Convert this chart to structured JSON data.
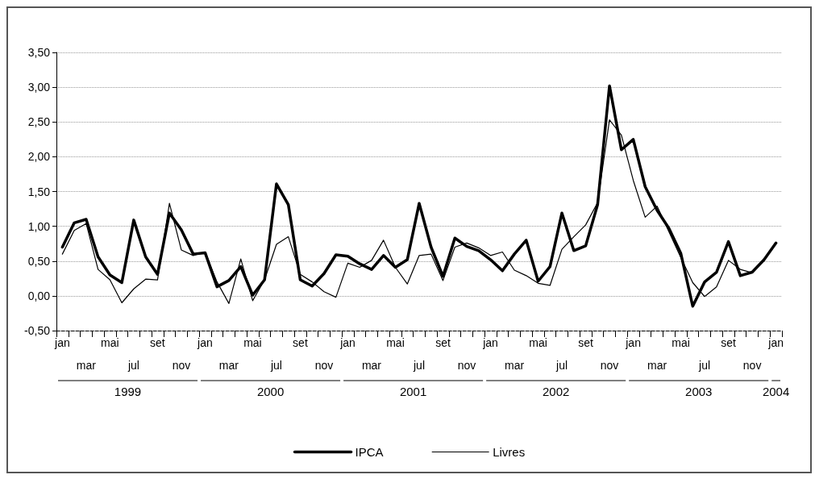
{
  "chart_data": {
    "type": "line",
    "categories": [
      "jan",
      null,
      "mar",
      null,
      "mai",
      null,
      "jul",
      null,
      "set",
      null,
      "nov",
      null,
      "jan",
      null,
      "mar",
      null,
      "mai",
      null,
      "jul",
      null,
      "set",
      null,
      "nov",
      null,
      "jan",
      null,
      "mar",
      null,
      "mai",
      null,
      "jul",
      null,
      "set",
      null,
      "nov",
      null,
      "jan",
      null,
      "mar",
      null,
      "mai",
      null,
      "jul",
      null,
      "set",
      null,
      "nov",
      null,
      "jan",
      null,
      "mar",
      null,
      "mai",
      null,
      "jul",
      null,
      "set",
      null,
      "nov",
      null,
      "jan"
    ],
    "series": [
      {
        "name": "IPCA",
        "color": "#000000",
        "values": [
          0.7,
          1.05,
          1.1,
          0.56,
          0.3,
          0.19,
          1.09,
          0.56,
          0.31,
          1.19,
          0.95,
          0.6,
          0.62,
          0.13,
          0.22,
          0.42,
          0.01,
          0.23,
          1.61,
          1.31,
          0.23,
          0.14,
          0.32,
          0.59,
          0.57,
          0.46,
          0.38,
          0.58,
          0.41,
          0.52,
          1.33,
          0.7,
          0.28,
          0.83,
          0.71,
          0.65,
          0.52,
          0.36,
          0.6,
          0.8,
          0.21,
          0.42,
          1.19,
          0.65,
          0.72,
          1.31,
          3.02,
          2.1,
          2.25,
          1.57,
          1.23,
          0.97,
          0.61,
          -0.15,
          0.2,
          0.34,
          0.78,
          0.29,
          0.34,
          0.52,
          0.76
        ]
      },
      {
        "name": "Livres",
        "color": "#000000",
        "values": [
          0.6,
          0.94,
          1.04,
          0.38,
          0.23,
          -0.1,
          0.1,
          0.24,
          0.23,
          1.33,
          0.66,
          0.58,
          0.63,
          0.2,
          -0.11,
          0.53,
          -0.07,
          0.23,
          0.74,
          0.85,
          0.31,
          0.2,
          0.06,
          -0.02,
          0.47,
          0.41,
          0.51,
          0.8,
          0.41,
          0.17,
          0.58,
          0.6,
          0.22,
          0.7,
          0.76,
          0.69,
          0.58,
          0.63,
          0.37,
          0.29,
          0.18,
          0.15,
          0.67,
          0.85,
          1.02,
          1.34,
          2.53,
          2.31,
          1.66,
          1.13,
          1.29,
          0.92,
          0.55,
          0.19,
          -0.01,
          0.13,
          0.51,
          0.38,
          0.33,
          0.51,
          0.75
        ]
      }
    ],
    "ylim": [
      -0.5,
      3.5
    ],
    "yticks": [
      {
        "value": -0.5,
        "label": "-0,50"
      },
      {
        "value": 0,
        "label": "0,00"
      },
      {
        "value": 0.5,
        "label": "0,50"
      },
      {
        "value": 1,
        "label": "1,00"
      },
      {
        "value": 1.5,
        "label": "1,50"
      },
      {
        "value": 2,
        "label": "2,00"
      },
      {
        "value": 2.5,
        "label": "2,50"
      },
      {
        "value": 3,
        "label": "3,00"
      },
      {
        "value": 3.5,
        "label": "3,50"
      }
    ],
    "grid": "y",
    "legend": "bottom",
    "marker": "none",
    "line_style": "solid",
    "annotations": [
      "1999",
      "2000",
      "2001",
      "2002",
      "2003",
      "2004"
    ]
  }
}
